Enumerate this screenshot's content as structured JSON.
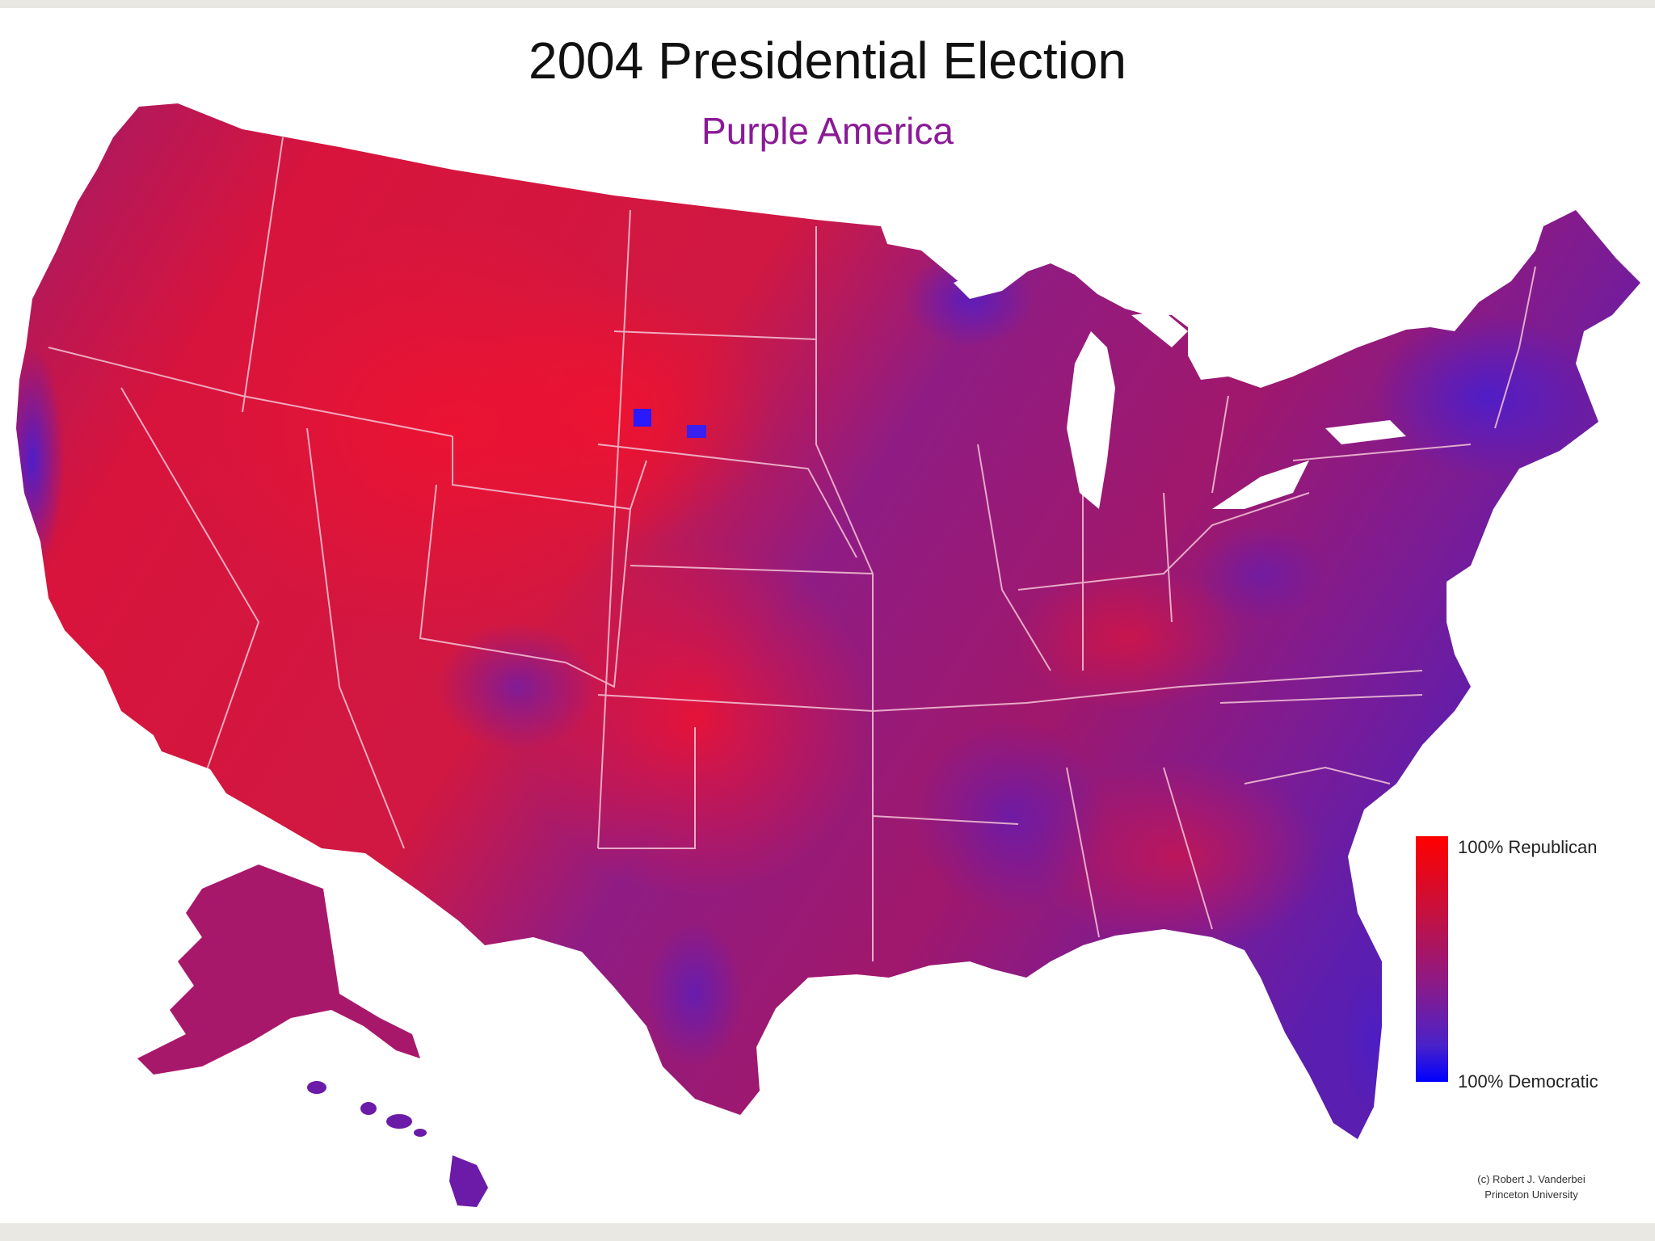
{
  "title": "2004 Presidential Election",
  "subtitle": "Purple America",
  "legend": {
    "top_label": "100% Republican",
    "bottom_label": "100% Democratic",
    "top_color": "#ff0000",
    "bottom_color": "#0000ff"
  },
  "credit": {
    "line1": "(c) Robert J. Vanderbei",
    "line2": "Princeton University"
  },
  "colors": {
    "background": "#ffffff",
    "page_border": "#e9e8e3",
    "title": "#111111",
    "subtitle": "#8a1a96",
    "map_red": "#d4103a",
    "map_purple": "#8a1a8c",
    "map_blue": "#3a22cc",
    "state_border": "#f0c8d8"
  }
}
